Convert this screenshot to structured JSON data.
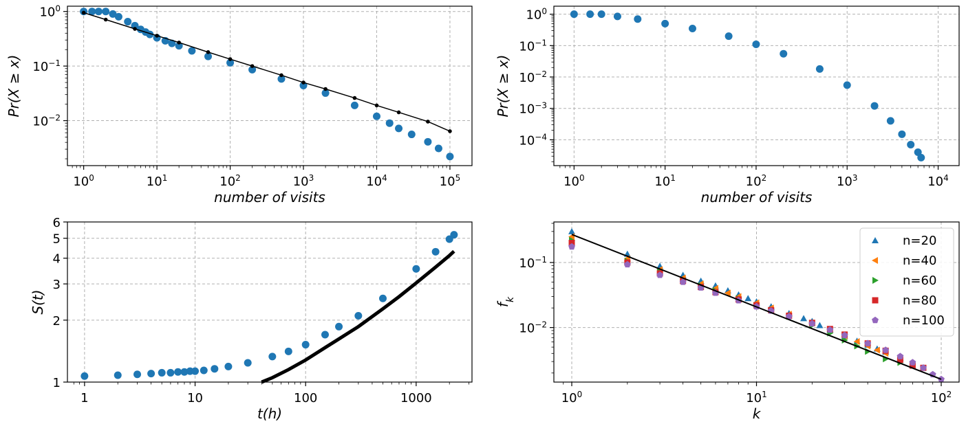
{
  "chart_data": [
    {
      "type": "scatter",
      "xscale": "log",
      "yscale": "log",
      "xlim": [
        0.6,
        200000
      ],
      "ylim": [
        0.0015,
        1.25
      ],
      "xlabel": "number of visits",
      "ylabel": "Pr(X ≥ x)",
      "xticks": [
        {
          "v": 1,
          "b": "10",
          "e": "0"
        },
        {
          "v": 10,
          "b": "10",
          "e": "1"
        },
        {
          "v": 100,
          "b": "10",
          "e": "2"
        },
        {
          "v": 1000,
          "b": "10",
          "e": "3"
        },
        {
          "v": 10000,
          "b": "10",
          "e": "4"
        },
        {
          "v": 100000,
          "b": "10",
          "e": "5"
        }
      ],
      "yticks": [
        {
          "v": 1,
          "b": "10",
          "e": "0"
        },
        {
          "v": 0.1,
          "b": "10",
          "e": "−1"
        },
        {
          "v": 0.01,
          "b": "10",
          "e": "−2"
        }
      ],
      "grid": true,
      "series": [
        {
          "color": "#1f77b4",
          "marker": "circle",
          "x": [
            1,
            1.3,
            1.6,
            2,
            2.5,
            3,
            4,
            5,
            6,
            7,
            8,
            10,
            13,
            16,
            20,
            30,
            50,
            100,
            200,
            500,
            1000,
            2000,
            5000,
            10000,
            15000,
            20000,
            30000,
            50000,
            70000,
            100000
          ],
          "y": [
            1,
            1,
            1,
            1,
            0.9,
            0.8,
            0.65,
            0.55,
            0.47,
            0.42,
            0.38,
            0.33,
            0.29,
            0.26,
            0.235,
            0.19,
            0.15,
            0.115,
            0.086,
            0.058,
            0.044,
            0.032,
            0.019,
            0.012,
            0.009,
            0.0072,
            0.0056,
            0.0041,
            0.0031,
            0.0022
          ]
        },
        {
          "color": "#000000",
          "marker": "dot",
          "x": [
            1,
            2,
            5,
            10,
            20,
            50,
            100,
            200,
            500,
            1000,
            2000,
            5000,
            10000,
            20000,
            50000,
            100000
          ],
          "y": [
            0.95,
            0.71,
            0.48,
            0.36,
            0.27,
            0.18,
            0.134,
            0.1,
            0.068,
            0.05,
            0.038,
            0.026,
            0.019,
            0.0142,
            0.0096,
            0.0064
          ]
        }
      ]
    },
    {
      "type": "scatter",
      "xscale": "log",
      "yscale": "log",
      "xlim": [
        0.6,
        17000
      ],
      "ylim": [
        1.5e-05,
        1.8
      ],
      "xlabel": "number of visits",
      "ylabel": "Pr(X ≥ x)",
      "xticks": [
        {
          "v": 1,
          "b": "10",
          "e": "0"
        },
        {
          "v": 10,
          "b": "10",
          "e": "1"
        },
        {
          "v": 100,
          "b": "10",
          "e": "2"
        },
        {
          "v": 1000,
          "b": "10",
          "e": "3"
        },
        {
          "v": 10000,
          "b": "10",
          "e": "4"
        }
      ],
      "yticks": [
        {
          "v": 1,
          "b": "10",
          "e": "0"
        },
        {
          "v": 0.1,
          "b": "10",
          "e": "−1"
        },
        {
          "v": 0.01,
          "b": "10",
          "e": "−2"
        },
        {
          "v": 0.001,
          "b": "10",
          "e": "−3"
        },
        {
          "v": 0.0001,
          "b": "10",
          "e": "−4"
        }
      ],
      "grid": true,
      "series": [
        {
          "color": "#1f77b4",
          "marker": "circle",
          "x": [
            1,
            1.5,
            2,
            3,
            5,
            10,
            20,
            50,
            100,
            200,
            500,
            1000,
            2000,
            3000,
            4000,
            5000,
            6000,
            6500
          ],
          "y": [
            1,
            1,
            1,
            0.85,
            0.7,
            0.5,
            0.35,
            0.2,
            0.11,
            0.055,
            0.018,
            0.0055,
            0.0012,
            0.0004,
            0.00015,
            7e-05,
            4e-05,
            2.7e-05
          ]
        }
      ]
    },
    {
      "type": "scatter",
      "xscale": "log",
      "yscale": "log",
      "xlim": [
        0.7,
        3200
      ],
      "ylim": [
        1,
        6
      ],
      "xlabel": "t(h)",
      "ylabel": "S(t)",
      "xticks": [
        {
          "v": 1,
          "t": "1"
        },
        {
          "v": 10,
          "t": "10"
        },
        {
          "v": 100,
          "t": "100"
        },
        {
          "v": 1000,
          "t": "1000"
        }
      ],
      "yticks": [
        {
          "v": 1,
          "t": "1"
        },
        {
          "v": 2,
          "t": "2"
        },
        {
          "v": 3,
          "t": "3"
        },
        {
          "v": 4,
          "t": "4"
        },
        {
          "v": 5,
          "t": "5"
        },
        {
          "v": 6,
          "t": "6"
        }
      ],
      "grid": true,
      "series": [
        {
          "color": "#1f77b4",
          "marker": "circle",
          "x": [
            1,
            2,
            3,
            4,
            5,
            6,
            7,
            8,
            9,
            10,
            12,
            15,
            20,
            30,
            50,
            70,
            100,
            150,
            200,
            300,
            500,
            1000,
            1500,
            2000,
            2200
          ],
          "y": [
            1.07,
            1.08,
            1.09,
            1.1,
            1.11,
            1.11,
            1.12,
            1.12,
            1.13,
            1.13,
            1.14,
            1.16,
            1.19,
            1.24,
            1.33,
            1.41,
            1.52,
            1.7,
            1.86,
            2.1,
            2.55,
            3.55,
            4.3,
            4.95,
            5.2
          ]
        },
        {
          "color": "#000000",
          "marker": "line",
          "x": [
            40,
            50,
            70,
            100,
            150,
            200,
            300,
            500,
            700,
            1000,
            1500,
            2000,
            2200
          ],
          "y": [
            1,
            1.05,
            1.15,
            1.28,
            1.47,
            1.62,
            1.86,
            2.27,
            2.6,
            3.03,
            3.62,
            4.12,
            4.32
          ]
        }
      ]
    },
    {
      "type": "scatter",
      "xscale": "log",
      "yscale": "log",
      "xlim": [
        0.8,
        125
      ],
      "ylim": [
        0.00145,
        0.42
      ],
      "xlabel": "k",
      "ylabel": "f",
      "ylabel_sub": "k",
      "xticks": [
        {
          "v": 1,
          "b": "10",
          "e": "0"
        },
        {
          "v": 10,
          "b": "10",
          "e": "1"
        },
        {
          "v": 100,
          "b": "10",
          "e": "2"
        }
      ],
      "yticks": [
        {
          "v": 0.1,
          "b": "10",
          "e": "−1"
        },
        {
          "v": 0.01,
          "b": "10",
          "e": "−2"
        }
      ],
      "grid": true,
      "legend": "top-right",
      "series": [
        {
          "name": "n=20",
          "color": "#1f77b4",
          "marker": "triangle-up",
          "x": [
            1,
            2,
            3,
            4,
            5,
            6,
            7,
            8,
            9,
            10,
            12,
            15,
            18,
            20,
            22,
            25,
            30,
            35,
            40,
            45,
            50,
            60
          ],
          "y": [
            0.3,
            0.135,
            0.088,
            0.064,
            0.052,
            0.044,
            0.037,
            0.032,
            0.028,
            0.025,
            0.021,
            0.0165,
            0.0138,
            0.0125,
            0.0108,
            0.0092,
            0.0074,
            0.0062,
            0.0054,
            0.0047,
            0.0042,
            0.0034
          ]
        },
        {
          "name": "n=40",
          "color": "#ff7f0e",
          "marker": "triangle-left",
          "x": [
            1,
            2,
            3,
            4,
            5,
            6,
            7,
            8,
            10,
            12,
            15,
            20,
            25,
            30,
            35,
            40,
            45,
            50,
            60
          ],
          "y": [
            0.25,
            0.115,
            0.078,
            0.058,
            0.047,
            0.04,
            0.034,
            0.03,
            0.024,
            0.02,
            0.016,
            0.0118,
            0.0092,
            0.0074,
            0.0061,
            0.0052,
            0.0045,
            0.004,
            0.0033
          ]
        },
        {
          "name": "n=60",
          "color": "#2ca02c",
          "marker": "triangle-right",
          "x": [
            1,
            2,
            3,
            4,
            5,
            6,
            8,
            10,
            12,
            15,
            20,
            25,
            30,
            35,
            40,
            50,
            60
          ],
          "y": [
            0.22,
            0.105,
            0.072,
            0.054,
            0.044,
            0.037,
            0.028,
            0.022,
            0.0185,
            0.0148,
            0.0108,
            0.0082,
            0.0064,
            0.0052,
            0.0043,
            0.0033,
            0.0029
          ]
        },
        {
          "name": "n=80",
          "color": "#d62728",
          "marker": "square",
          "x": [
            1,
            2,
            3,
            4,
            5,
            6,
            8,
            10,
            12,
            15,
            20,
            25,
            30,
            40,
            50,
            60,
            70,
            80
          ],
          "y": [
            0.2,
            0.1,
            0.068,
            0.052,
            0.042,
            0.035,
            0.027,
            0.022,
            0.0185,
            0.0152,
            0.0118,
            0.0095,
            0.0078,
            0.0057,
            0.0044,
            0.0032,
            0.0026,
            0.0024
          ]
        },
        {
          "name": "n=100",
          "color": "#9467bd",
          "marker": "pentagon",
          "x": [
            1,
            2,
            3,
            4,
            5,
            6,
            8,
            10,
            12,
            15,
            20,
            25,
            30,
            40,
            50,
            60,
            70,
            80,
            90,
            100
          ],
          "y": [
            0.175,
            0.093,
            0.064,
            0.05,
            0.041,
            0.034,
            0.026,
            0.021,
            0.018,
            0.0148,
            0.0115,
            0.0092,
            0.0076,
            0.0057,
            0.0045,
            0.0036,
            0.0029,
            0.0024,
            0.0019,
            0.0016
          ]
        },
        {
          "color": "#000000",
          "marker": "line",
          "x": [
            1,
            100
          ],
          "y": [
            0.27,
            0.0016
          ]
        }
      ]
    }
  ]
}
